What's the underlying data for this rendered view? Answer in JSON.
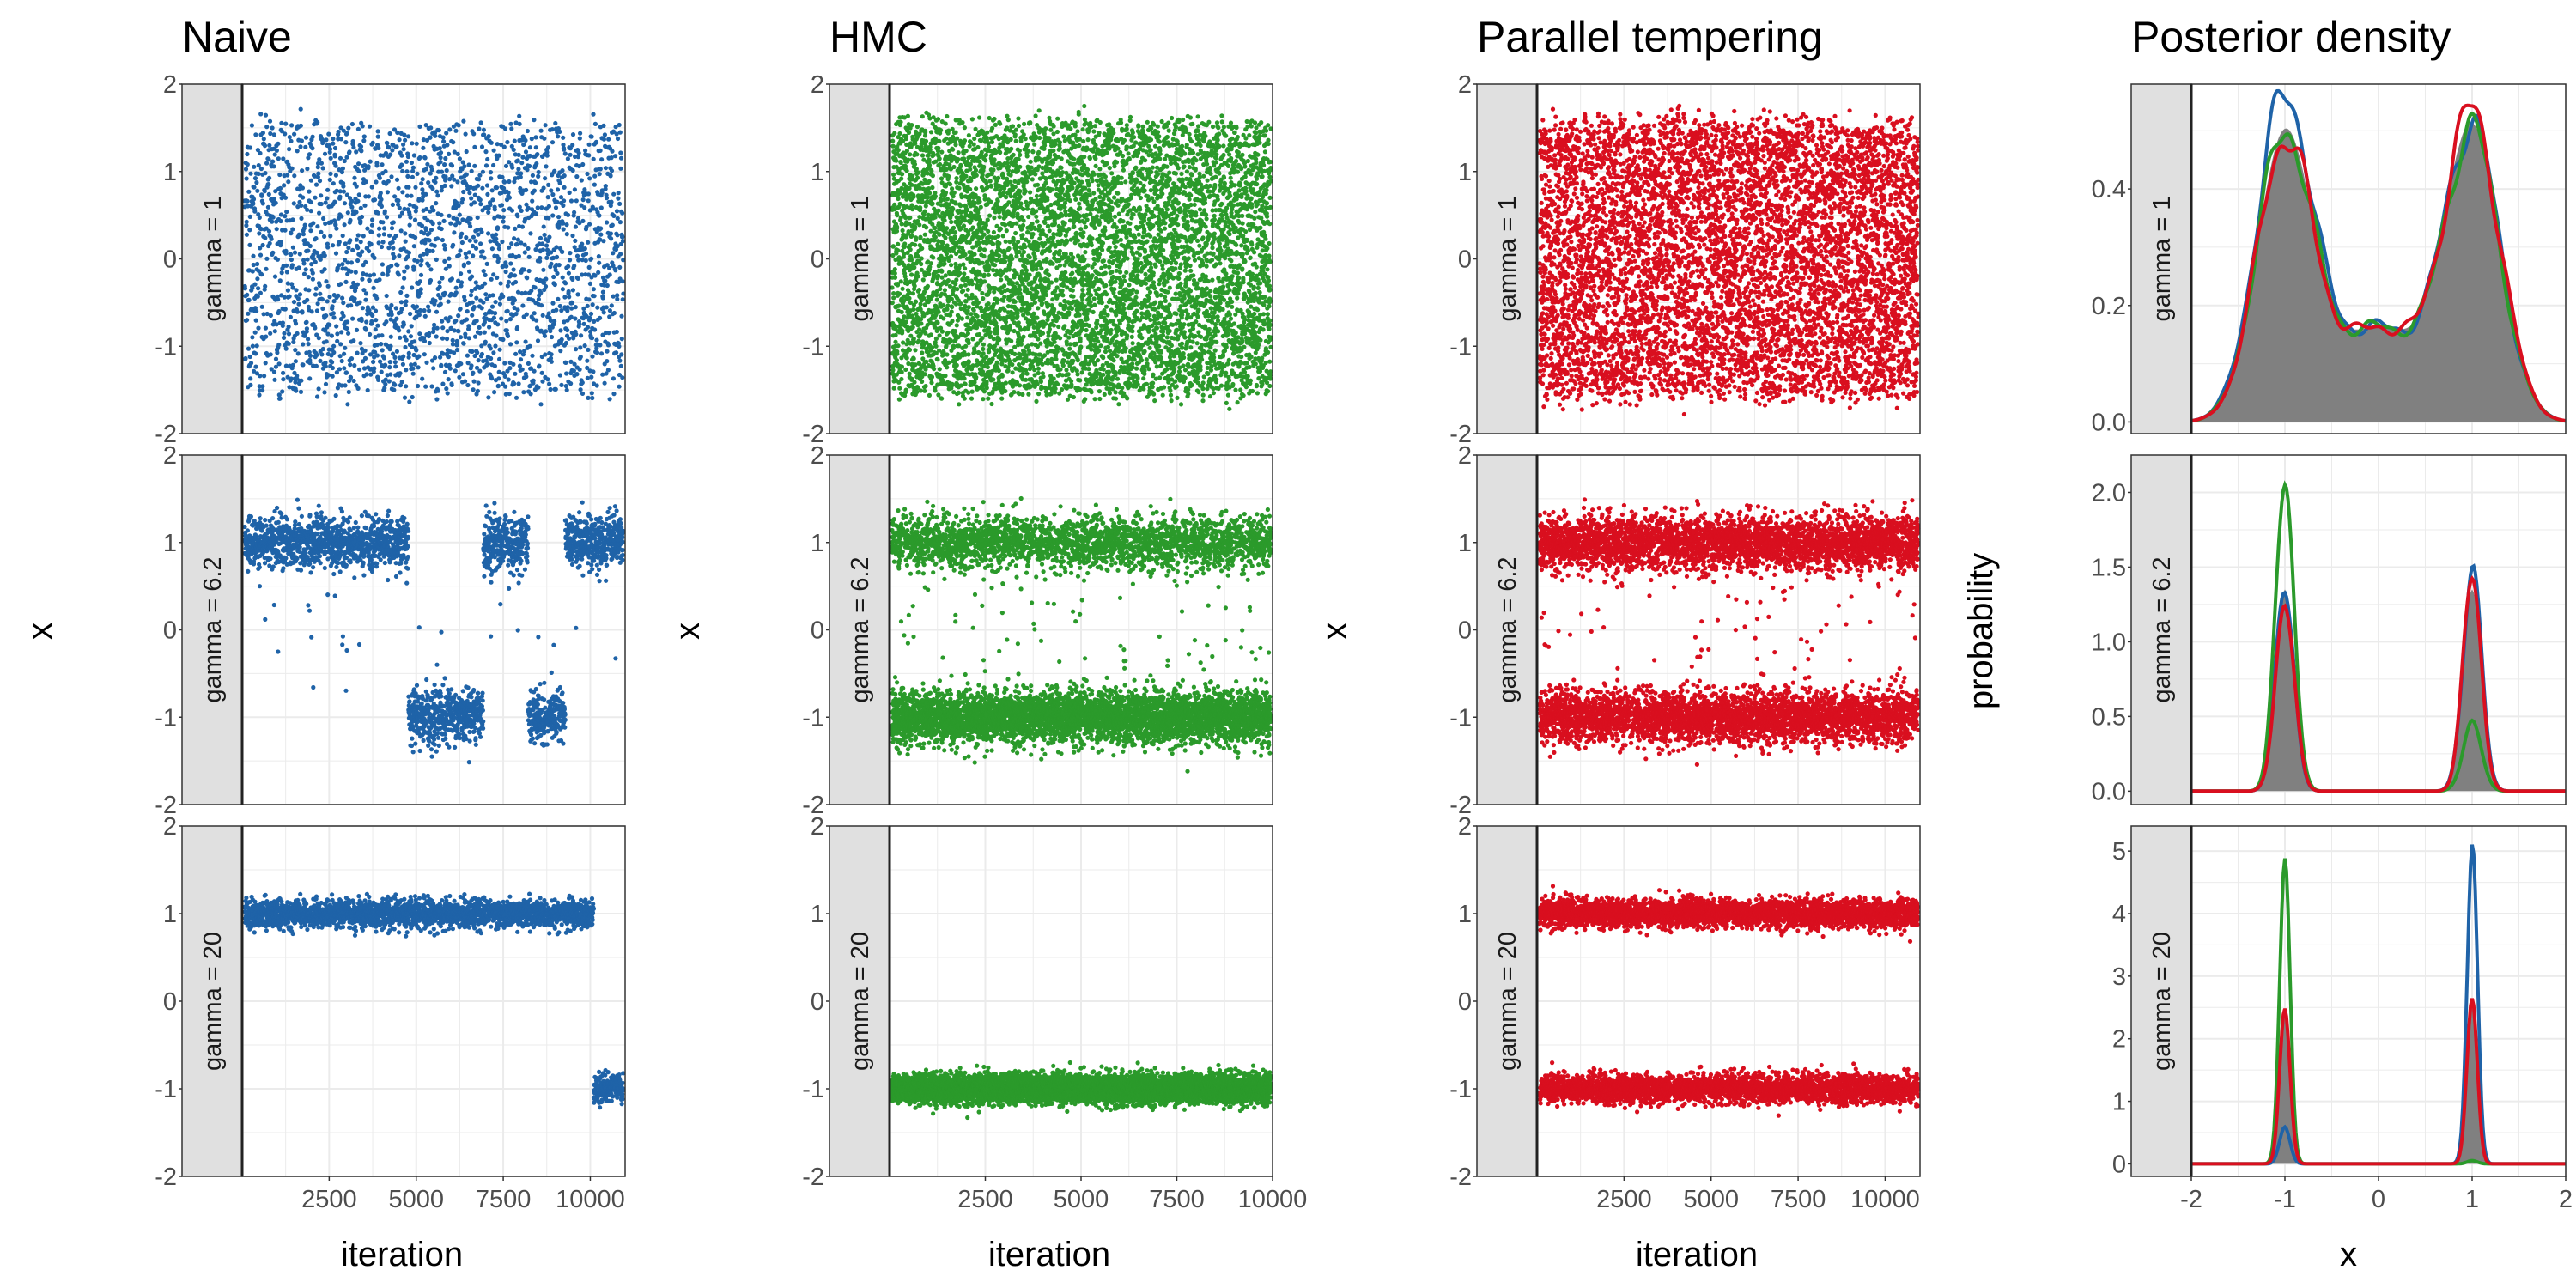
{
  "figure": {
    "columns": [
      {
        "title": "Naive",
        "xlabel": "iteration",
        "ylabel": "x"
      },
      {
        "title": "HMC",
        "xlabel": "iteration",
        "ylabel": "x"
      },
      {
        "title": "Parallel tempering",
        "xlabel": "iteration",
        "ylabel": "x"
      },
      {
        "title": "Posterior density",
        "xlabel": "x",
        "ylabel": "probability"
      }
    ],
    "rows": [
      "gamma = 1",
      "gamma = 6.2",
      "gamma = 20"
    ],
    "colors": {
      "naive": "#1f63a8",
      "hmc": "#2b9a2b",
      "pt": "#d90f1f",
      "density_fill": "#808080",
      "strip_bg": "#e0e0e0",
      "grid": "#ebebeb",
      "panel_border": "#333333"
    }
  },
  "chart_data": [
    {
      "type": "scatter",
      "title": "Naive",
      "xlabel": "iteration",
      "ylabel": "x",
      "xlim": [
        0,
        11000
      ],
      "ylim": [
        -2,
        2
      ],
      "xticks": [
        "2500",
        "5000",
        "7500",
        "10000"
      ],
      "yticks": [
        "-2",
        "-1",
        "0",
        "1",
        "2"
      ],
      "grid": true,
      "panels": [
        {
          "facet": "gamma = 1",
          "description": "samples spread roughly uniformly from -1.6 to 1.6"
        },
        {
          "facet": "gamma = 6.2",
          "description": "two bands near 1 and -1 with slow switching"
        },
        {
          "facet": "gamma = 20",
          "description": "stuck near 1 until ~10000, then near -1"
        }
      ]
    },
    {
      "type": "scatter",
      "title": "HMC",
      "xlabel": "iteration",
      "ylabel": "x",
      "xlim": [
        0,
        10000
      ],
      "ylim": [
        -2,
        2
      ],
      "xticks": [
        "2500",
        "5000",
        "7500",
        "10000"
      ],
      "yticks": [
        "-2",
        "-1",
        "0",
        "1",
        "2"
      ],
      "grid": true,
      "panels": [
        {
          "facet": "gamma = 1",
          "description": "dense samples between -1.5 and 1.5"
        },
        {
          "facet": "gamma = 6.2",
          "description": "denser band near -1, sparser band near 1"
        },
        {
          "facet": "gamma = 20",
          "description": "all samples near -1"
        }
      ]
    },
    {
      "type": "scatter",
      "title": "Parallel tempering",
      "xlabel": "iteration",
      "ylabel": "x",
      "xlim": [
        0,
        11000
      ],
      "ylim": [
        -2,
        2
      ],
      "xticks": [
        "2500",
        "5000",
        "7500",
        "10000"
      ],
      "yticks": [
        "-2",
        "-1",
        "0",
        "1",
        "2"
      ],
      "grid": true,
      "panels": [
        {
          "facet": "gamma = 1",
          "description": "dense samples between -1.5 and 1.5"
        },
        {
          "facet": "gamma = 6.2",
          "description": "two balanced bands near 1 and -1"
        },
        {
          "facet": "gamma = 20",
          "description": "two balanced bands near 1 and -1"
        }
      ]
    },
    {
      "type": "line",
      "title": "Posterior density",
      "xlabel": "x",
      "ylabel": "probability",
      "xlim": [
        -2,
        2
      ],
      "xticks": [
        "-2",
        "-1",
        "0",
        "1",
        "2"
      ],
      "grid": true,
      "panels": [
        {
          "facet": "gamma = 1",
          "ylim": [
            -0.02,
            0.58
          ],
          "yticks": [
            "0.0",
            "0.2",
            "0.4"
          ],
          "peaks": {
            "true": [
              0.49,
              0.5
            ],
            "naive": [
              0.55,
              0.5
            ],
            "hmc": [
              0.49,
              0.49
            ],
            "pt": [
              0.48,
              0.52
            ]
          }
        },
        {
          "facet": "gamma = 6.2",
          "ylim": [
            -0.09,
            2.25
          ],
          "yticks": [
            "0.0",
            "0.5",
            "1.0",
            "1.5",
            "2.0"
          ],
          "peaks": {
            "true": [
              1.35,
              1.35
            ],
            "naive": [
              1.35,
              1.5
            ],
            "hmc": [
              2.1,
              0.45
            ],
            "pt": [
              1.3,
              1.4
            ]
          }
        },
        {
          "facet": "gamma = 20",
          "ylim": [
            -0.2,
            5.4
          ],
          "yticks": [
            "0",
            "1",
            "2",
            "3",
            "4",
            "5"
          ],
          "peaks": {
            "true": [
              2.5,
              2.5
            ],
            "naive": [
              0.6,
              5.1
            ],
            "hmc": [
              5.0,
              0.05
            ],
            "pt": [
              2.6,
              2.6
            ]
          }
        }
      ]
    }
  ]
}
